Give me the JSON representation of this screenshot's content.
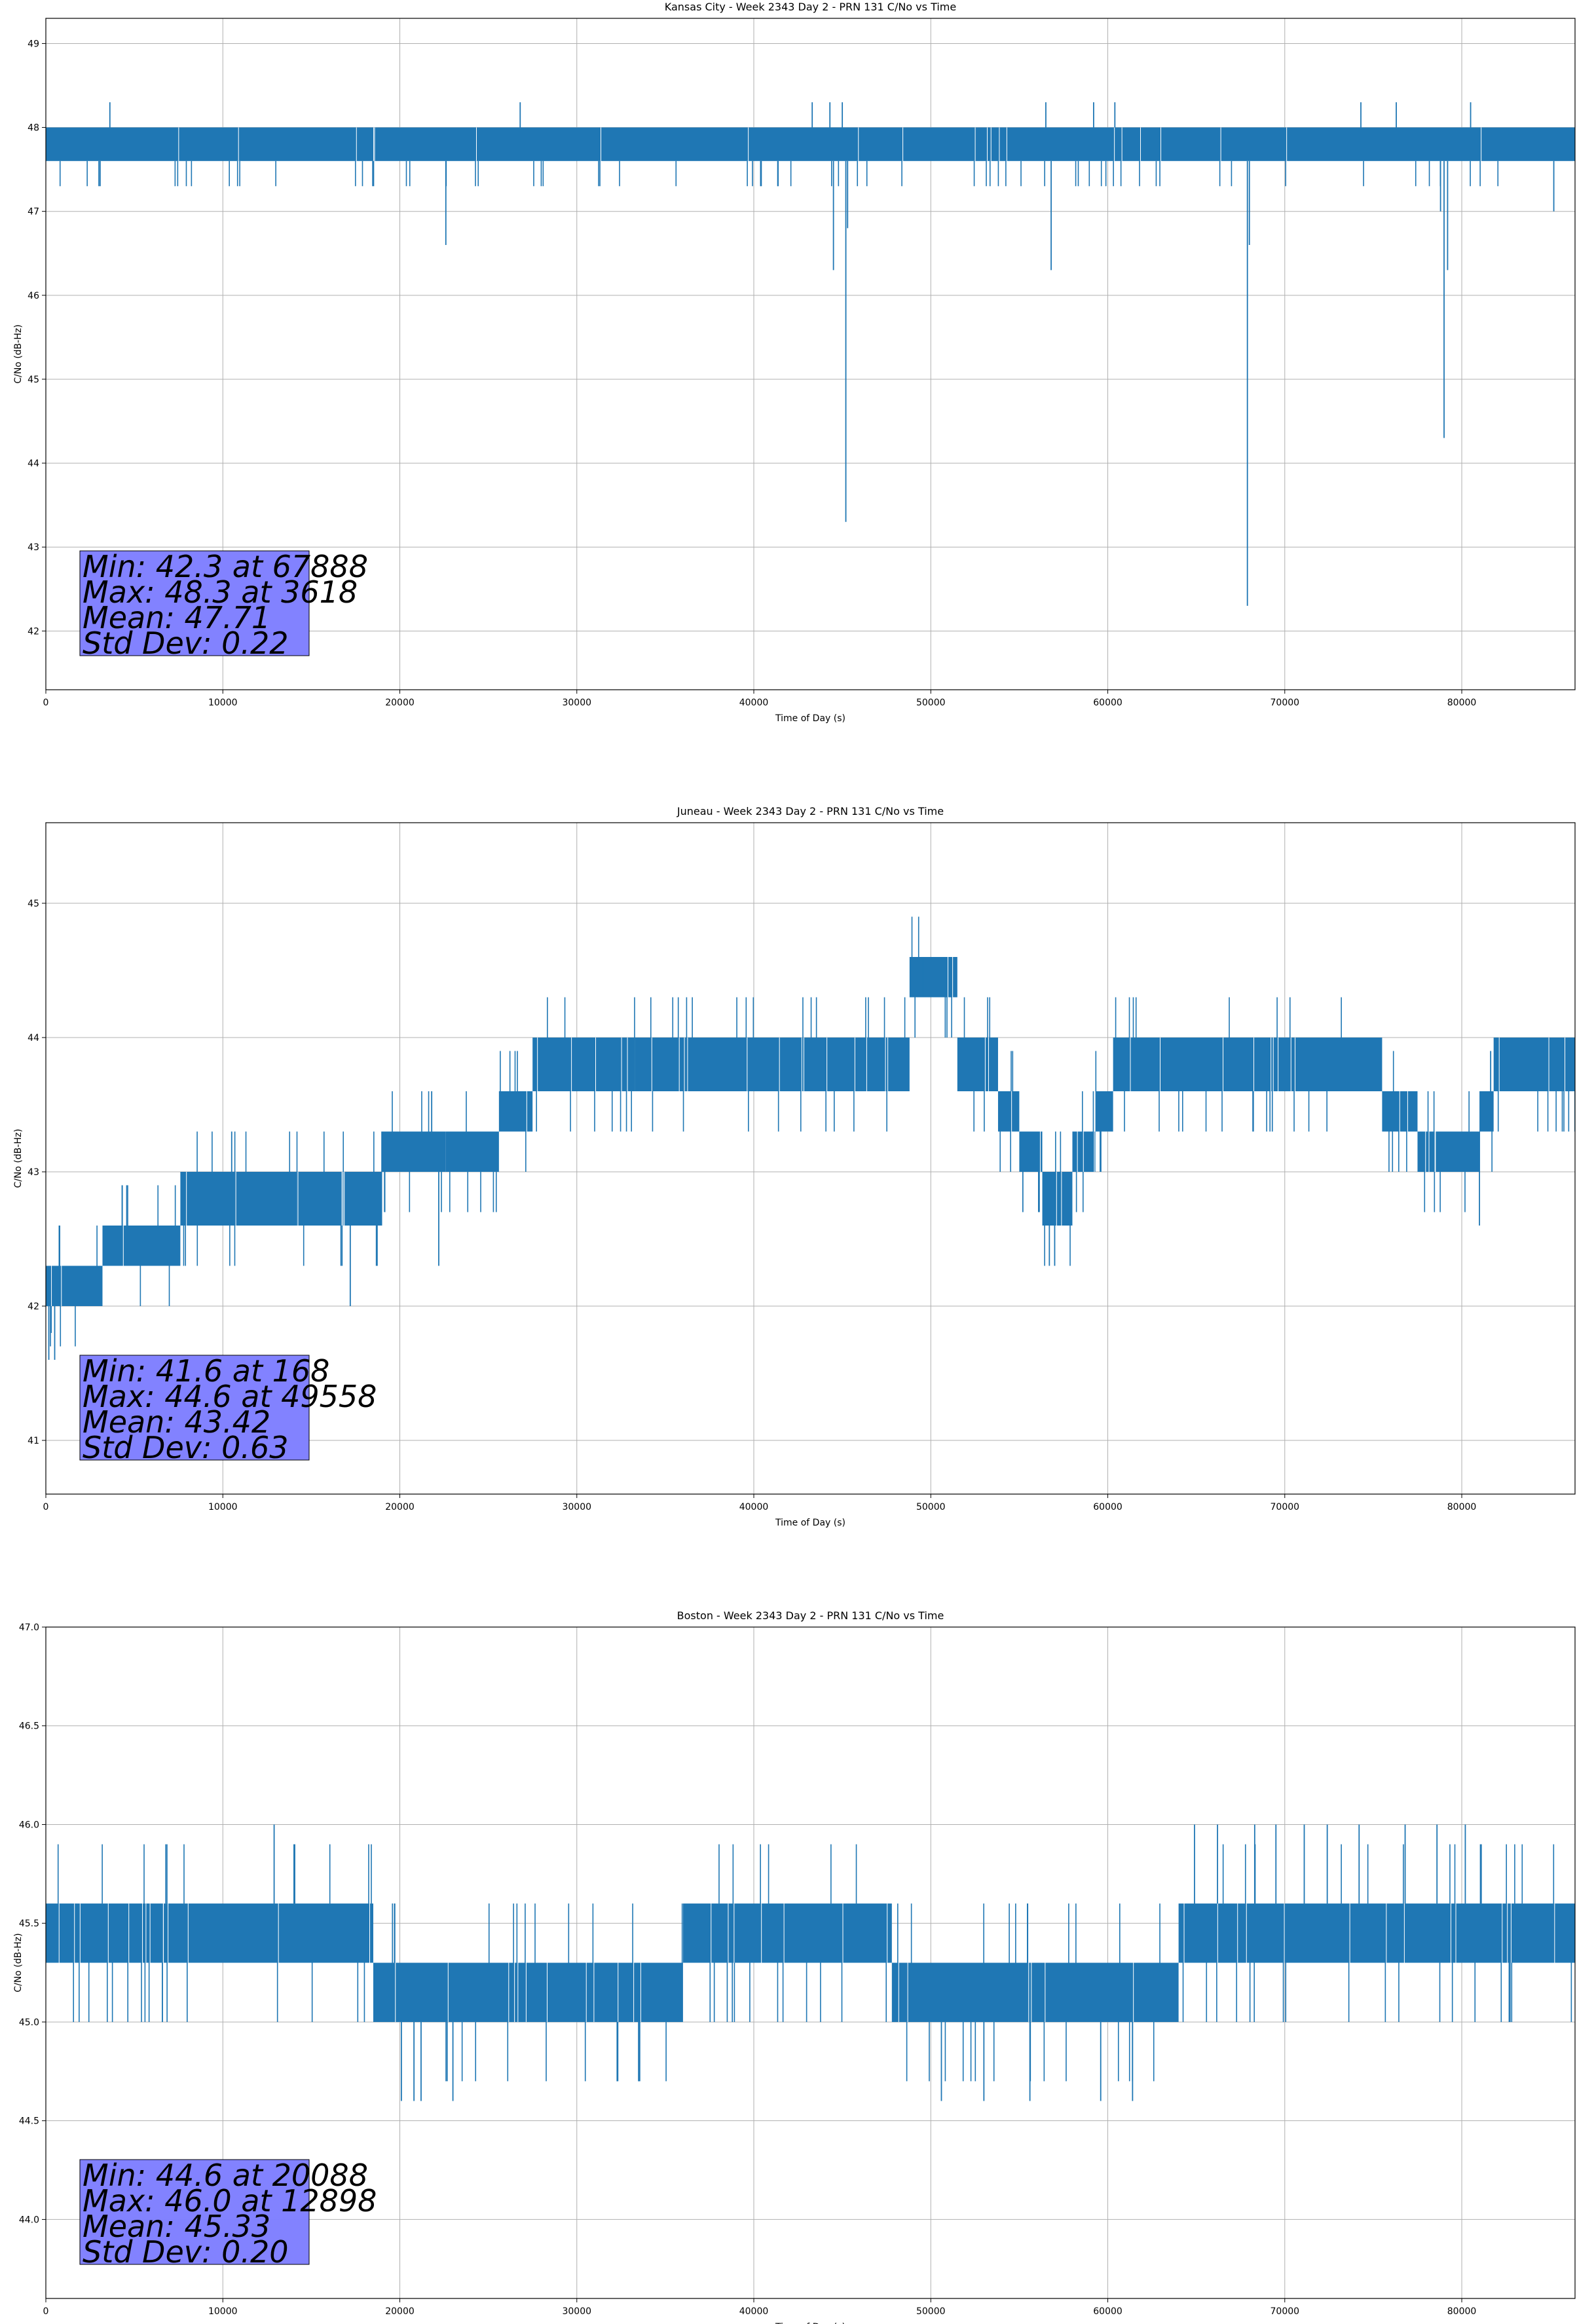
{
  "colors": {
    "series": "#1f77b4",
    "grid": "#b0b0b0",
    "stat_box": "#8080ff",
    "axis": "#000000"
  },
  "chart_data": [
    {
      "type": "line",
      "title": "Kansas City - Week 2343 Day 2 - PRN 131 C/No vs Time",
      "xlabel": "Time of Day (s)",
      "ylabel": "C/No (dB-Hz)",
      "xlim": [
        0,
        86400
      ],
      "ylim": [
        41.3,
        49.3
      ],
      "xticks": [
        0,
        10000,
        20000,
        30000,
        40000,
        50000,
        60000,
        70000,
        80000
      ],
      "yticks": [
        42,
        43,
        44,
        45,
        46,
        47,
        48,
        49
      ],
      "yticks_text": [
        "42",
        "43",
        "44",
        "45",
        "46",
        "47",
        "48",
        "49"
      ],
      "grid": true,
      "stats": [
        "Min: 42.3 at 67888",
        "Max: 48.3 at 3618",
        "Mean: 47.71",
        "Std Dev: 0.22"
      ],
      "series": [
        {
          "bands": [
            {
              "x0": 0,
              "x1": 86400,
              "lo": 47.6,
              "hi": 48.0
            }
          ],
          "spikes": [
            {
              "x": 3618,
              "y": 48.3
            },
            {
              "x": 26800,
              "y": 48.3
            },
            {
              "x": 43300,
              "y": 48.3
            },
            {
              "x": 44300,
              "y": 48.3
            },
            {
              "x": 45000,
              "y": 48.3
            },
            {
              "x": 56500,
              "y": 48.3
            },
            {
              "x": 59200,
              "y": 48.3
            },
            {
              "x": 60400,
              "y": 48.3
            },
            {
              "x": 74300,
              "y": 48.3
            },
            {
              "x": 76300,
              "y": 48.3
            },
            {
              "x": 80500,
              "y": 48.3
            },
            {
              "x": 3000,
              "y": 47.3
            },
            {
              "x": 22600,
              "y": 46.6
            },
            {
              "x": 44500,
              "y": 46.3
            },
            {
              "x": 45200,
              "y": 43.3
            },
            {
              "x": 45300,
              "y": 46.8
            },
            {
              "x": 56800,
              "y": 46.3
            },
            {
              "x": 67888,
              "y": 42.3
            },
            {
              "x": 68000,
              "y": 46.6
            },
            {
              "x": 78800,
              "y": 47.0
            },
            {
              "x": 79000,
              "y": 44.3
            },
            {
              "x": 79200,
              "y": 46.3
            },
            {
              "x": 85200,
              "y": 47.0
            }
          ],
          "flicker": {
            "seed": 11,
            "density": 110,
            "dip": 47.3,
            "peak": 47.6
          }
        }
      ]
    },
    {
      "type": "line",
      "title": "Juneau - Week 2343 Day 2 - PRN 131 C/No vs Time",
      "xlabel": "Time of Day (s)",
      "ylabel": "C/No (dB-Hz)",
      "xlim": [
        0,
        86400
      ],
      "ylim": [
        40.6,
        45.6
      ],
      "xticks": [
        0,
        10000,
        20000,
        30000,
        40000,
        50000,
        60000,
        70000,
        80000
      ],
      "yticks": [
        41,
        42,
        43,
        44,
        45
      ],
      "yticks_text": [
        "41",
        "42",
        "43",
        "44",
        "45"
      ],
      "grid": true,
      "stats": [
        "Min: 41.6 at 168",
        "Max: 44.6 at 49558",
        "Mean: 43.42",
        "Std Dev: 0.63"
      ],
      "series": [
        {
          "bands": [
            {
              "x0": 0,
              "x1": 3200,
              "lo": 42.0,
              "hi": 42.3
            },
            {
              "x0": 3200,
              "x1": 7600,
              "lo": 42.3,
              "hi": 42.6
            },
            {
              "x0": 7600,
              "x1": 14200,
              "lo": 42.6,
              "hi": 43.0
            },
            {
              "x0": 14200,
              "x1": 19000,
              "lo": 42.6,
              "hi": 43.0
            },
            {
              "x0": 19000,
              "x1": 22600,
              "lo": 43.0,
              "hi": 43.3
            },
            {
              "x0": 22600,
              "x1": 25600,
              "lo": 43.0,
              "hi": 43.3
            },
            {
              "x0": 25600,
              "x1": 27500,
              "lo": 43.3,
              "hi": 43.6
            },
            {
              "x0": 27500,
              "x1": 33300,
              "lo": 43.6,
              "hi": 44.0
            },
            {
              "x0": 33300,
              "x1": 48800,
              "lo": 43.6,
              "hi": 44.0
            },
            {
              "x0": 48800,
              "x1": 51500,
              "lo": 44.3,
              "hi": 44.6
            },
            {
              "x0": 51500,
              "x1": 53800,
              "lo": 43.6,
              "hi": 44.0
            },
            {
              "x0": 53800,
              "x1": 55000,
              "lo": 43.3,
              "hi": 43.6
            },
            {
              "x0": 55000,
              "x1": 56300,
              "lo": 43.0,
              "hi": 43.3
            },
            {
              "x0": 56300,
              "x1": 58000,
              "lo": 42.6,
              "hi": 43.0
            },
            {
              "x0": 58000,
              "x1": 59300,
              "lo": 43.0,
              "hi": 43.3
            },
            {
              "x0": 59300,
              "x1": 60300,
              "lo": 43.3,
              "hi": 43.6
            },
            {
              "x0": 60300,
              "x1": 75500,
              "lo": 43.6,
              "hi": 44.0
            },
            {
              "x0": 75500,
              "x1": 77500,
              "lo": 43.3,
              "hi": 43.6
            },
            {
              "x0": 77500,
              "x1": 81000,
              "lo": 43.0,
              "hi": 43.3
            },
            {
              "x0": 81000,
              "x1": 81800,
              "lo": 43.3,
              "hi": 43.6
            },
            {
              "x0": 81800,
              "x1": 86400,
              "lo": 43.6,
              "hi": 44.0
            }
          ],
          "spikes": [
            {
              "x": 168,
              "y": 41.6
            },
            {
              "x": 300,
              "y": 41.8
            },
            {
              "x": 500,
              "y": 41.6
            },
            {
              "x": 10500,
              "y": 43.3
            },
            {
              "x": 17200,
              "y": 42.0
            },
            {
              "x": 21800,
              "y": 43.6
            },
            {
              "x": 22200,
              "y": 42.3
            },
            {
              "x": 49558,
              "y": 44.6
            },
            {
              "x": 56700,
              "y": 42.3
            },
            {
              "x": 57000,
              "y": 42.3
            },
            {
              "x": 81000,
              "y": 42.6
            }
          ],
          "flicker": {
            "seed": 23,
            "density": 120,
            "dip": 0.3,
            "peak": 0.3,
            "relative": true
          }
        }
      ]
    },
    {
      "type": "line",
      "title": "Boston - Week 2343 Day 2 - PRN 131 C/No vs Time",
      "xlabel": "Time of Day (s)",
      "ylabel": "C/No (dB-Hz)",
      "xlim": [
        0,
        86400
      ],
      "ylim": [
        43.6,
        47.0
      ],
      "xticks": [
        0,
        10000,
        20000,
        30000,
        40000,
        50000,
        60000,
        70000,
        80000
      ],
      "yticks": [
        44.0,
        44.5,
        45.0,
        45.5,
        46.0,
        46.5,
        47.0
      ],
      "yticks_text": [
        "44.0",
        "44.5",
        "45.0",
        "45.5",
        "46.0",
        "46.5",
        "47.0"
      ],
      "grid": true,
      "stats": [
        "Min: 44.6 at 20088",
        "Max: 46.0 at 12898",
        "Mean: 45.33",
        "Std Dev: 0.20"
      ],
      "series": [
        {
          "bands": [
            {
              "x0": 0,
              "x1": 18500,
              "lo": 45.3,
              "hi": 45.6
            },
            {
              "x0": 18500,
              "x1": 36000,
              "lo": 45.0,
              "hi": 45.3
            },
            {
              "x0": 36000,
              "x1": 47800,
              "lo": 45.3,
              "hi": 45.6
            },
            {
              "x0": 47800,
              "x1": 64000,
              "lo": 45.0,
              "hi": 45.3
            },
            {
              "x0": 64000,
              "x1": 86400,
              "lo": 45.3,
              "hi": 45.6
            }
          ],
          "spikes": [
            {
              "x": 12898,
              "y": 46.0
            },
            {
              "x": 20088,
              "y": 44.6
            },
            {
              "x": 20800,
              "y": 44.6
            },
            {
              "x": 21200,
              "y": 44.6
            },
            {
              "x": 23000,
              "y": 44.6
            },
            {
              "x": 50600,
              "y": 44.6
            },
            {
              "x": 53000,
              "y": 44.6
            },
            {
              "x": 55600,
              "y": 44.6
            },
            {
              "x": 59600,
              "y": 44.6
            },
            {
              "x": 61400,
              "y": 44.6
            },
            {
              "x": 64900,
              "y": 46.0
            },
            {
              "x": 66200,
              "y": 46.0
            },
            {
              "x": 68300,
              "y": 46.0
            },
            {
              "x": 69500,
              "y": 46.0
            },
            {
              "x": 71100,
              "y": 46.0
            },
            {
              "x": 72400,
              "y": 46.0
            },
            {
              "x": 74200,
              "y": 46.0
            },
            {
              "x": 76800,
              "y": 46.0
            },
            {
              "x": 78600,
              "y": 46.0
            },
            {
              "x": 80200,
              "y": 46.0
            }
          ],
          "flicker": {
            "seed": 37,
            "density": 120,
            "dip": 0.3,
            "peak": 0.3,
            "relative": true
          }
        }
      ]
    }
  ]
}
